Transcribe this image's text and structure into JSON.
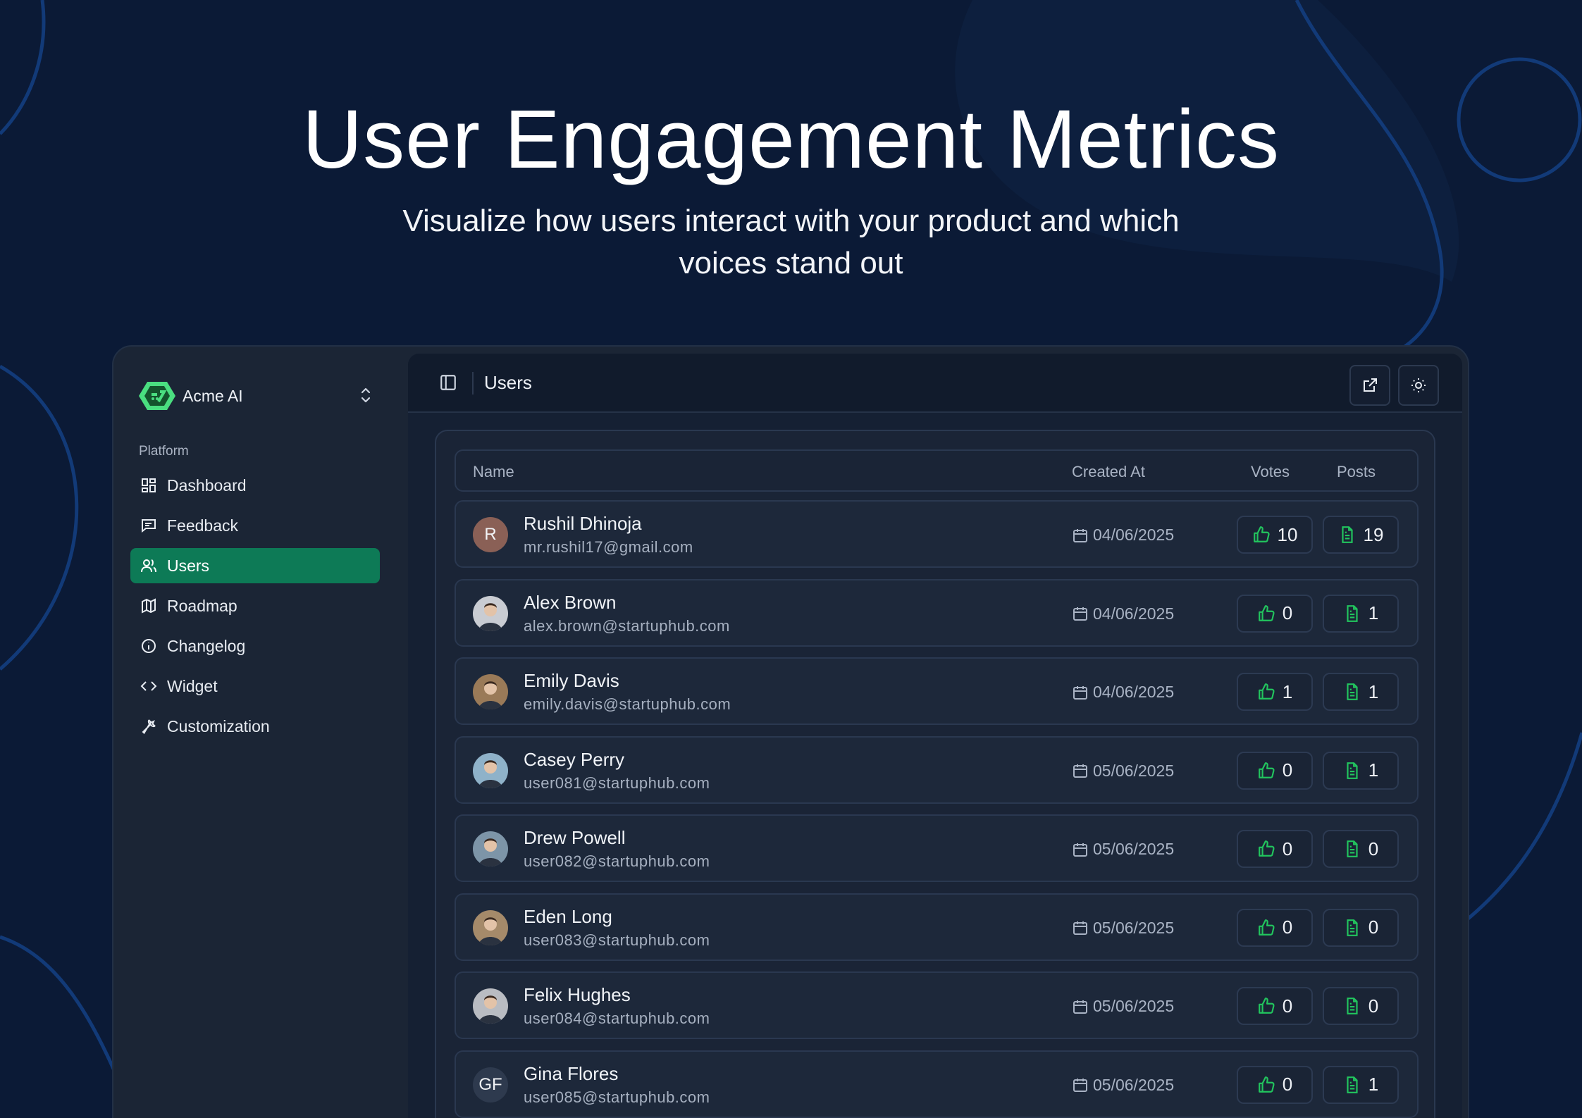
{
  "hero": {
    "title": "User Engagement Metrics",
    "subtitle": "Visualize how users interact with your product and which voices stand out"
  },
  "colors": {
    "background": "#0b1a36",
    "accent": "#0d7a56",
    "icon_green": "#22c55e",
    "logo": "#4ade80"
  },
  "sidebar": {
    "workspace": "Acme AI",
    "section": "Platform",
    "items": [
      {
        "label": "Dashboard",
        "icon": "dashboard-icon",
        "active": false
      },
      {
        "label": "Feedback",
        "icon": "message-square-icon",
        "active": false
      },
      {
        "label": "Users",
        "icon": "users-icon",
        "active": true
      },
      {
        "label": "Roadmap",
        "icon": "map-icon",
        "active": false
      },
      {
        "label": "Changelog",
        "icon": "info-icon",
        "active": false
      },
      {
        "label": "Widget",
        "icon": "code-icon",
        "active": false
      },
      {
        "label": "Customization",
        "icon": "wrench-icon",
        "active": false
      }
    ]
  },
  "topbar": {
    "title": "Users"
  },
  "table": {
    "headers": {
      "name": "Name",
      "created": "Created At",
      "votes": "Votes",
      "posts": "Posts"
    },
    "rows": [
      {
        "name": "Rushil Dhinoja",
        "email": "mr.rushil17@gmail.com",
        "created": "04/06/2025",
        "votes": "10",
        "posts": "19",
        "avatar": "R"
      },
      {
        "name": "Alex Brown",
        "email": "alex.brown@startuphub.com",
        "created": "04/06/2025",
        "votes": "0",
        "posts": "1",
        "avatar": ""
      },
      {
        "name": "Emily Davis",
        "email": "emily.davis@startuphub.com",
        "created": "04/06/2025",
        "votes": "1",
        "posts": "1",
        "avatar": ""
      },
      {
        "name": "Casey Perry",
        "email": "user081@startuphub.com",
        "created": "05/06/2025",
        "votes": "0",
        "posts": "1",
        "avatar": ""
      },
      {
        "name": "Drew Powell",
        "email": "user082@startuphub.com",
        "created": "05/06/2025",
        "votes": "0",
        "posts": "0",
        "avatar": ""
      },
      {
        "name": "Eden Long",
        "email": "user083@startuphub.com",
        "created": "05/06/2025",
        "votes": "0",
        "posts": "0",
        "avatar": ""
      },
      {
        "name": "Felix Hughes",
        "email": "user084@startuphub.com",
        "created": "05/06/2025",
        "votes": "0",
        "posts": "0",
        "avatar": ""
      },
      {
        "name": "Gina Flores",
        "email": "user085@startuphub.com",
        "created": "05/06/2025",
        "votes": "0",
        "posts": "1",
        "avatar": "GF"
      }
    ]
  }
}
